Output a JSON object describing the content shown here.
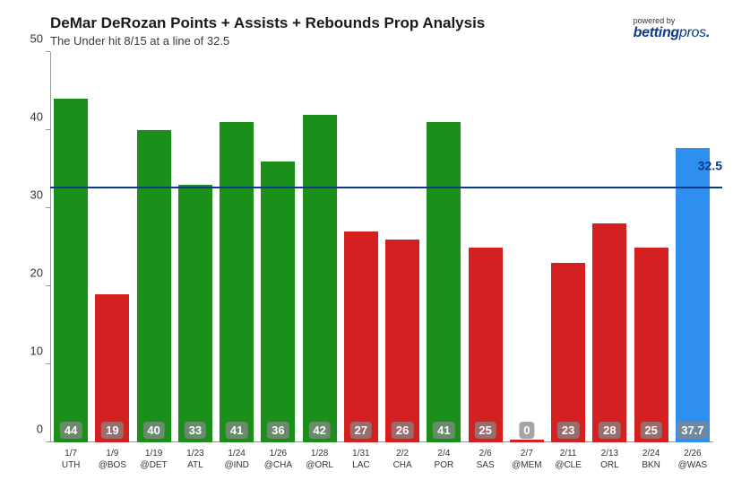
{
  "header": {
    "title": "DeMar DeRozan Points + Assists + Rebounds Prop Analysis",
    "subtitle": "The Under hit 8/15 at a line of 32.5",
    "powered_label": "powered by",
    "brand_bold": "betting",
    "brand_thin": "pros"
  },
  "chart": {
    "type": "bar",
    "ylim": [
      0,
      50
    ],
    "yticks": [
      0,
      10,
      20,
      30,
      40,
      50
    ],
    "threshold": 32.5,
    "threshold_label": "32.5",
    "colors": {
      "over": "#1a8f1a",
      "under": "#d42020",
      "current": "#2e8ff0",
      "threshold": "#0b3a8a",
      "badge_bg": "rgba(135,135,135,0.75)",
      "badge_text": "#ffffff",
      "axis": "#999999",
      "background": "#ffffff"
    },
    "bars": [
      {
        "date": "1/7",
        "opp": "UTH",
        "value": 44,
        "label": "44",
        "kind": "over"
      },
      {
        "date": "1/9",
        "opp": "@BOS",
        "value": 19,
        "label": "19",
        "kind": "under"
      },
      {
        "date": "1/19",
        "opp": "@DET",
        "value": 40,
        "label": "40",
        "kind": "over"
      },
      {
        "date": "1/23",
        "opp": "ATL",
        "value": 33,
        "label": "33",
        "kind": "over"
      },
      {
        "date": "1/24",
        "opp": "@IND",
        "value": 41,
        "label": "41",
        "kind": "over"
      },
      {
        "date": "1/26",
        "opp": "@CHA",
        "value": 36,
        "label": "36",
        "kind": "over"
      },
      {
        "date": "1/28",
        "opp": "@ORL",
        "value": 42,
        "label": "42",
        "kind": "over"
      },
      {
        "date": "1/31",
        "opp": "LAC",
        "value": 27,
        "label": "27",
        "kind": "under"
      },
      {
        "date": "2/2",
        "opp": "CHA",
        "value": 26,
        "label": "26",
        "kind": "under"
      },
      {
        "date": "2/4",
        "opp": "POR",
        "value": 41,
        "label": "41",
        "kind": "over"
      },
      {
        "date": "2/6",
        "opp": "SAS",
        "value": 25,
        "label": "25",
        "kind": "under"
      },
      {
        "date": "2/7",
        "opp": "@MEM",
        "value": 0,
        "label": "0",
        "kind": "under"
      },
      {
        "date": "2/11",
        "opp": "@CLE",
        "value": 23,
        "label": "23",
        "kind": "under"
      },
      {
        "date": "2/13",
        "opp": "ORL",
        "value": 28,
        "label": "28",
        "kind": "under"
      },
      {
        "date": "2/24",
        "opp": "BKN",
        "value": 25,
        "label": "25",
        "kind": "under"
      },
      {
        "date": "2/26",
        "opp": "@WAS",
        "value": 37.7,
        "label": "37.7",
        "kind": "current"
      }
    ]
  }
}
